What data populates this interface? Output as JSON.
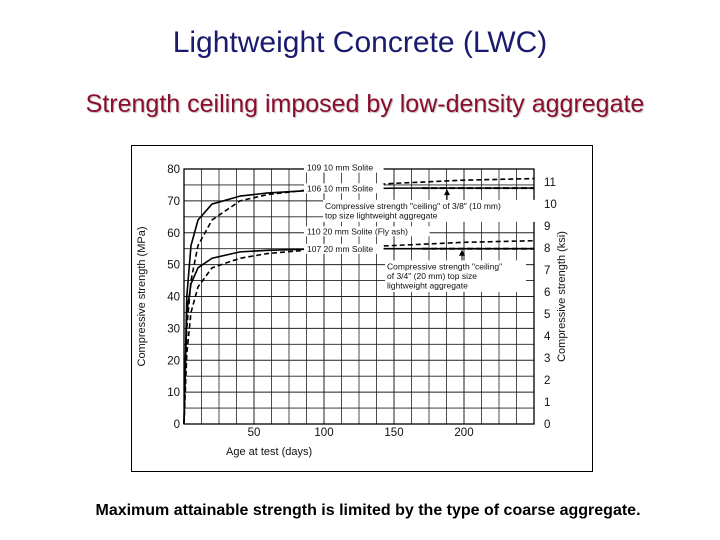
{
  "slide": {
    "title": "Lightweight Concrete (LWC)",
    "subtitle": "Strength ceiling imposed by low-density aggregate",
    "caption": "Maximum attainable strength is limited by the type of coarse aggregate.",
    "colors": {
      "title": "#1a1a6e",
      "subtitle": "#8b0e2c"
    }
  },
  "chart_data": {
    "type": "line",
    "xlabel": "Age at test (days)",
    "ylabel": "Compressive strength (MPa)",
    "y2label": "Compressive strength (ksi)",
    "xlim": [
      0,
      250
    ],
    "ylim": [
      0,
      80
    ],
    "y2lim": [
      0,
      11.6
    ],
    "x_ticks": [
      50,
      100,
      150,
      200
    ],
    "y_ticks": [
      0,
      10,
      20,
      30,
      40,
      50,
      60,
      70,
      80
    ],
    "y2_ticks": [
      0,
      1,
      2,
      3,
      4,
      5,
      6,
      7,
      8,
      9,
      10,
      11
    ],
    "grid": true,
    "series": [
      {
        "name": "109 10 mm Solite",
        "style": "dashed",
        "x": [
          0,
          2,
          5,
          10,
          20,
          40,
          60,
          100,
          150,
          200,
          250
        ],
        "y": [
          0,
          30,
          45,
          56,
          64,
          70,
          72,
          74,
          75.5,
          76.5,
          77
        ]
      },
      {
        "name": "106 10 mm Solite",
        "style": "solid",
        "x": [
          0,
          2,
          5,
          10,
          20,
          40,
          60,
          100,
          150,
          200,
          250
        ],
        "y": [
          0,
          40,
          56,
          64,
          69,
          71.5,
          72.5,
          73.5,
          74,
          74,
          74
        ]
      },
      {
        "name": "110 20 mm Solite (Fly ash)",
        "style": "dashed",
        "x": [
          0,
          2,
          5,
          10,
          20,
          40,
          60,
          100,
          150,
          200,
          250
        ],
        "y": [
          0,
          22,
          35,
          43,
          49,
          52,
          53.5,
          55,
          56,
          57,
          57.5
        ]
      },
      {
        "name": "107 20 mm Solite",
        "style": "solid",
        "x": [
          0,
          2,
          5,
          10,
          20,
          40,
          60,
          100,
          150,
          200,
          250
        ],
        "y": [
          0,
          35,
          44,
          49,
          52,
          54,
          54.5,
          55,
          55,
          55,
          55
        ]
      }
    ],
    "annotations": [
      {
        "lines": [
          "Compressive strength \"ceiling\" of 3/8\" (10 mm)",
          "top size lightweight aggregate"
        ],
        "level": 74
      },
      {
        "lines": [
          "Compressive strength \"ceiling\"",
          "of 3/4\" (20 mm) top size",
          "lightweight aggregate"
        ],
        "level": 55
      }
    ]
  }
}
